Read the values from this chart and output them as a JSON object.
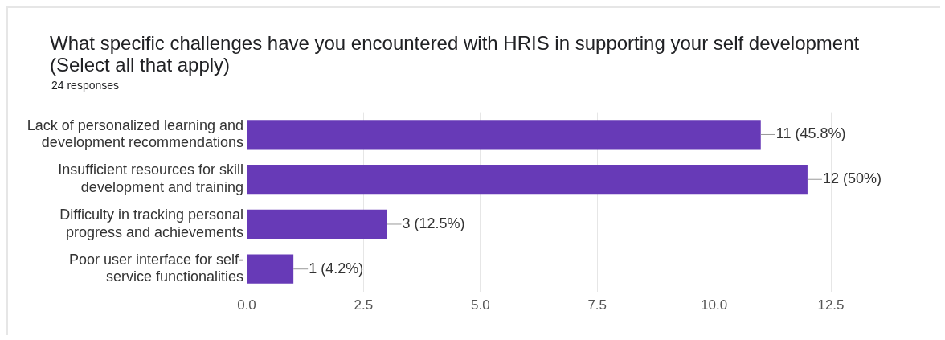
{
  "chart_data": {
    "type": "bar",
    "orientation": "horizontal",
    "title": "What specific challenges have you encountered with HRIS in supporting your self development (Select all that apply)",
    "subtitle": "24 responses",
    "categories": [
      "Lack of personalized learning and development recommendations",
      "Insufficient resources for skill development and training",
      "Difficulty in tracking personal progress and achievements",
      "Poor user interface for self-service functionalities"
    ],
    "values": [
      11,
      12,
      3,
      1
    ],
    "value_labels": [
      "11 (45.8%)",
      "12 (50%)",
      "3 (12.5%)",
      "1 (4.2%)"
    ],
    "color": "#673ab7",
    "xlim": [
      0,
      12.5
    ],
    "xticks": [
      {
        "value": 0,
        "label": "0.0"
      },
      2.5,
      {
        "value": 5,
        "label": "5.0"
      },
      7.5,
      {
        "value": 10,
        "label": "10.0"
      },
      12.5
    ],
    "grid": "x"
  }
}
